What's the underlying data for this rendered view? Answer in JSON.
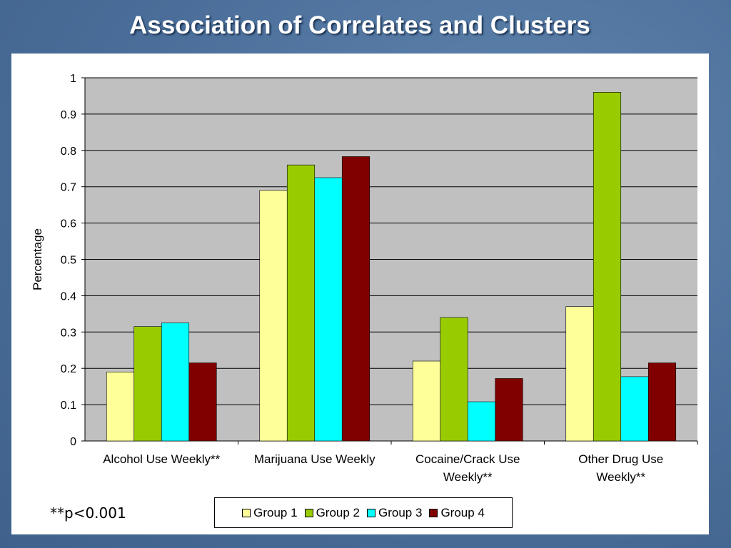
{
  "slide": {
    "title": "Association of Correlates and Clusters",
    "note": "**p<0.001"
  },
  "chart_data": {
    "type": "bar",
    "categories": [
      [
        "Alcohol Use Weekly**"
      ],
      [
        "Marijuana Use Weekly"
      ],
      [
        "Cocaine/Crack Use",
        "Weekly**"
      ],
      [
        "Other Drug Use",
        "Weekly**"
      ]
    ],
    "series": [
      {
        "name": "Group 1",
        "color": "#ffff99",
        "values": [
          0.19,
          0.69,
          0.22,
          0.37
        ]
      },
      {
        "name": "Group 2",
        "color": "#99cc00",
        "values": [
          0.315,
          0.76,
          0.34,
          0.96
        ]
      },
      {
        "name": "Group 3",
        "color": "#00ffff",
        "values": [
          0.325,
          0.725,
          0.108,
          0.177
        ]
      },
      {
        "name": "Group 4",
        "color": "#800000",
        "values": [
          0.215,
          0.783,
          0.172,
          0.215
        ]
      }
    ],
    "ylabel": "Percentage",
    "ylim": [
      0,
      1
    ],
    "yticks": [
      "0",
      "0.1",
      "0.2",
      "0.3",
      "0.4",
      "0.5",
      "0.6",
      "0.7",
      "0.8",
      "0.9",
      "1"
    ],
    "grid": true,
    "legend_position": "bottom",
    "plot_background": "#c0c0c0"
  }
}
